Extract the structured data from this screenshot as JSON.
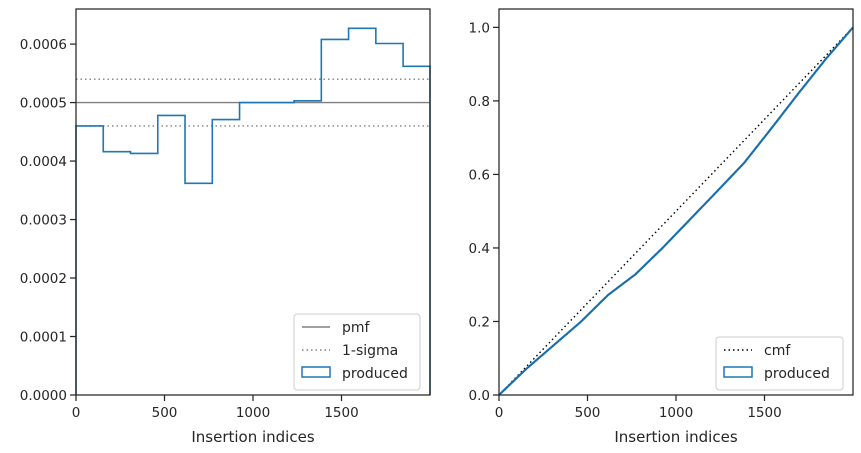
{
  "chart_data": [
    {
      "type": "histogram",
      "xlabel": "Insertion indices",
      "ylabel": "",
      "xlim": [
        0,
        2000
      ],
      "ylim": [
        0,
        0.00066
      ],
      "xticks": [
        0,
        500,
        1000,
        1500
      ],
      "xtick_labels": [
        "0",
        "500",
        "1000",
        "1500"
      ],
      "yticks": [
        0,
        0.0001,
        0.0002,
        0.0003,
        0.0004,
        0.0005,
        0.0006
      ],
      "ytick_labels": [
        "0.0000",
        "0.0001",
        "0.0002",
        "0.0003",
        "0.0004",
        "0.0005",
        "0.0006"
      ],
      "grid": false,
      "legend_position": "bottom-right",
      "lines": [
        {
          "name": "pmf",
          "style": "solid",
          "color": "#808080",
          "y": 0.0005
        },
        {
          "name": "1-sigma",
          "style": "dotted",
          "color": "#808080",
          "y": [
            0.00054,
            0.00046
          ]
        }
      ],
      "series": [
        {
          "name": "produced",
          "color": "#1f77b4",
          "bin_edges": [
            0,
            154,
            308,
            462,
            616,
            770,
            924,
            1078,
            1232,
            1386,
            1540,
            1694,
            1848,
            2000
          ],
          "values": [
            0.00046,
            0.000416,
            0.000413,
            0.000478,
            0.000362,
            0.000471,
            0.0005,
            0.0005,
            0.000503,
            0.000608,
            0.000627,
            0.000601,
            0.000562
          ]
        }
      ],
      "legend": [
        {
          "label": "pmf"
        },
        {
          "label": "1-sigma"
        },
        {
          "label": "produced"
        }
      ]
    },
    {
      "type": "line",
      "xlabel": "Insertion indices",
      "ylabel": "",
      "xlim": [
        0,
        2000
      ],
      "ylim": [
        0,
        1.05
      ],
      "xticks": [
        0,
        500,
        1000,
        1500
      ],
      "xtick_labels": [
        "0",
        "500",
        "1000",
        "1500"
      ],
      "yticks": [
        0,
        0.2,
        0.4,
        0.6,
        0.8,
        1.0
      ],
      "ytick_labels": [
        "0.0",
        "0.2",
        "0.4",
        "0.6",
        "0.8",
        "1.0"
      ],
      "grid": false,
      "legend_position": "bottom-right",
      "series": [
        {
          "name": "cmf",
          "style": "dotted",
          "color": "#000000",
          "x": [
            0,
            2000
          ],
          "y": [
            0,
            1.0
          ]
        },
        {
          "name": "produced",
          "style": "step",
          "color": "#1f77b4",
          "x": [
            0,
            154,
            308,
            462,
            616,
            770,
            924,
            1078,
            1232,
            1386,
            1540,
            1694,
            1848,
            2000
          ],
          "y": [
            0,
            0.071,
            0.135,
            0.199,
            0.272,
            0.328,
            0.4,
            0.477,
            0.554,
            0.632,
            0.726,
            0.822,
            0.915,
            1.0
          ]
        }
      ],
      "legend": [
        {
          "label": "cmf"
        },
        {
          "label": "produced"
        }
      ]
    }
  ]
}
